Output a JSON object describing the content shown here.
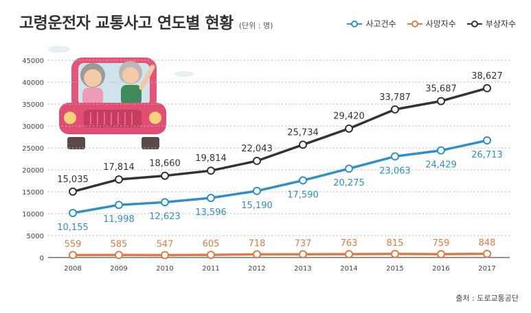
{
  "title": "고령운전자 교통사고 연도별 현황",
  "unit": "(단위 : 명)",
  "source": "출처 : 도로교통공단",
  "colors": {
    "accidents": "#2f8fc6",
    "deaths": "#e07a45",
    "injuries": "#333333",
    "grid": "#bbbbbb"
  },
  "chart_data": {
    "type": "line",
    "x": [
      "2008",
      "2009",
      "2010",
      "2011",
      "2012",
      "2013",
      "2014",
      "2015",
      "2016",
      "2017"
    ],
    "ylim": [
      0,
      45000
    ],
    "yticks": [
      0,
      5000,
      10000,
      15000,
      20000,
      25000,
      30000,
      35000,
      40000,
      45000
    ],
    "grid": true,
    "legend": "top-right",
    "series": [
      {
        "name": "사고건수",
        "values": [
          10155,
          11998,
          12623,
          13596,
          15190,
          17590,
          20275,
          23063,
          24429,
          26713
        ],
        "labels": [
          "10,155",
          "11,998",
          "12,623",
          "13,596",
          "15,190",
          "17,590",
          "20,275",
          "23,063",
          "24,429",
          "26,713"
        ]
      },
      {
        "name": "사망자수",
        "values": [
          559,
          585,
          547,
          605,
          718,
          737,
          763,
          815,
          759,
          848
        ],
        "labels": [
          "559",
          "585",
          "547",
          "605",
          "718",
          "737",
          "763",
          "815",
          "759",
          "848"
        ]
      },
      {
        "name": "부상자수",
        "values": [
          15035,
          17814,
          18660,
          19814,
          22043,
          25734,
          29420,
          33787,
          35687,
          38627
        ],
        "labels": [
          "15,035",
          "17,814",
          "18,660",
          "19,814",
          "22,043",
          "25,734",
          "29,420",
          "33,787",
          "35,687",
          "38,627"
        ]
      }
    ]
  }
}
